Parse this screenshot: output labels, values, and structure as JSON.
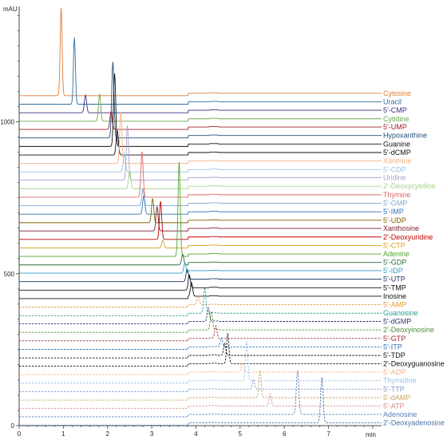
{
  "chart_data": {
    "type": "line",
    "title": "",
    "xlabel": "min",
    "ylabel": "mAU",
    "xlim": [
      0,
      8.2
    ],
    "ylim": [
      0,
      1380
    ],
    "x_ticks": [
      0,
      1,
      2,
      3,
      4,
      5,
      6,
      7
    ],
    "y_ticks": [
      0,
      500,
      1000
    ],
    "x_tick_labels": [
      "0",
      "1",
      "2",
      "3",
      "4",
      "5",
      "6",
      "7"
    ],
    "y_tick_labels": [
      "0",
      "500",
      "1000"
    ],
    "series": [
      {
        "name": "Cytosine",
        "color": "#e07b39",
        "dashed": false,
        "baseline": 1086,
        "peaks": [
          {
            "x": 0.95,
            "h": 290,
            "w": 0.022
          }
        ]
      },
      {
        "name": "Uracil",
        "color": "#2f6f9f",
        "dashed": false,
        "baseline": 1058,
        "peaks": [
          {
            "x": 1.25,
            "h": 220,
            "w": 0.022
          }
        ]
      },
      {
        "name": "5'-CMP",
        "color": "#3b2f7f",
        "dashed": false,
        "baseline": 1030,
        "peaks": [
          {
            "x": 1.5,
            "h": 58,
            "w": 0.025
          }
        ]
      },
      {
        "name": "Cytidine",
        "color": "#6aa84f",
        "dashed": false,
        "baseline": 1002,
        "peaks": [
          {
            "x": 1.82,
            "h": 90,
            "w": 0.025
          }
        ]
      },
      {
        "name": "5'-UMP",
        "color": "#a61c2a",
        "dashed": false,
        "baseline": 975,
        "peaks": [
          {
            "x": 2.08,
            "h": 60,
            "w": 0.025
          }
        ]
      },
      {
        "name": "Hypoxanthine",
        "color": "#1f4e79",
        "dashed": false,
        "baseline": 947,
        "peaks": [
          {
            "x": 2.12,
            "h": 250,
            "w": 0.025
          }
        ]
      },
      {
        "name": "Guanine",
        "color": "#111111",
        "dashed": false,
        "baseline": 919,
        "peaks": [
          {
            "x": 2.16,
            "h": 240,
            "w": 0.025
          }
        ]
      },
      {
        "name": "5'-dCMP",
        "color": "#111111",
        "dashed": false,
        "baseline": 891,
        "peaks": [
          {
            "x": 2.22,
            "h": 80,
            "w": 0.025
          }
        ]
      },
      {
        "name": "Xanthine",
        "color": "#f4b183",
        "dashed": false,
        "baseline": 863,
        "peaks": [
          {
            "x": 2.3,
            "h": 170,
            "w": 0.025
          }
        ]
      },
      {
        "name": "5'-CDP",
        "color": "#9dc3e6",
        "dashed": false,
        "baseline": 835,
        "peaks": [
          {
            "x": 2.38,
            "h": 60,
            "w": 0.025
          }
        ]
      },
      {
        "name": "Uridine",
        "color": "#a9a3c9",
        "dashed": false,
        "baseline": 808,
        "peaks": [
          {
            "x": 2.45,
            "h": 180,
            "w": 0.025
          }
        ]
      },
      {
        "name": "2'-Deoxycytidine",
        "color": "#a9d18e",
        "dashed": false,
        "baseline": 780,
        "peaks": [
          {
            "x": 2.5,
            "h": 60,
            "w": 0.025
          }
        ]
      },
      {
        "name": "Thymine",
        "color": "#e06666",
        "dashed": false,
        "baseline": 752,
        "peaks": [
          {
            "x": 2.78,
            "h": 150,
            "w": 0.025
          }
        ]
      },
      {
        "name": "5'-GMP",
        "color": "#7ea6d0",
        "dashed": false,
        "baseline": 724,
        "peaks": [
          {
            "x": 2.8,
            "h": 55,
            "w": 0.025
          }
        ]
      },
      {
        "name": "5'-IMP",
        "color": "#2e75b6",
        "dashed": false,
        "baseline": 696,
        "peaks": [
          {
            "x": 2.82,
            "h": 60,
            "w": 0.025
          }
        ]
      },
      {
        "name": "5'-UDP",
        "color": "#7f6000",
        "dashed": false,
        "baseline": 668,
        "peaks": [
          {
            "x": 3.02,
            "h": 80,
            "w": 0.025
          }
        ]
      },
      {
        "name": "Xanthosine",
        "color": "#7b1f2f",
        "dashed": false,
        "baseline": 641,
        "peaks": [
          {
            "x": 3.12,
            "h": 80,
            "w": 0.025
          }
        ]
      },
      {
        "name": "2'-Deoxyuridine",
        "color": "#c00000",
        "dashed": false,
        "baseline": 613,
        "peaks": [
          {
            "x": 3.2,
            "h": 125,
            "w": 0.025
          }
        ]
      },
      {
        "name": "5'-CTP",
        "color": "#d4a017",
        "dashed": false,
        "baseline": 585,
        "peaks": [
          {
            "x": 3.25,
            "h": 25,
            "w": 0.025
          }
        ]
      },
      {
        "name": "Adenine",
        "color": "#4ea72e",
        "dashed": false,
        "baseline": 557,
        "peaks": [
          {
            "x": 3.62,
            "h": 310,
            "w": 0.025
          }
        ]
      },
      {
        "name": "5'-GDP",
        "color": "#2f6b3a",
        "dashed": false,
        "baseline": 529,
        "peaks": [
          {
            "x": 3.7,
            "h": 35,
            "w": 0.025
          }
        ]
      },
      {
        "name": "5'-IDP",
        "color": "#2e9bc7",
        "dashed": false,
        "baseline": 502,
        "peaks": [
          {
            "x": 3.75,
            "h": 35,
            "w": 0.025
          }
        ]
      },
      {
        "name": "5'-UTP",
        "color": "#1f3864",
        "dashed": false,
        "baseline": 474,
        "peaks": [
          {
            "x": 3.8,
            "h": 40,
            "w": 0.025
          }
        ]
      },
      {
        "name": "5'-TMP",
        "color": "#111111",
        "dashed": false,
        "baseline": 446,
        "peaks": [
          {
            "x": 3.85,
            "h": 42,
            "w": 0.025
          }
        ]
      },
      {
        "name": "Inosine",
        "color": "#111111",
        "dashed": false,
        "baseline": 418,
        "peaks": [
          {
            "x": 3.9,
            "h": 45,
            "w": 0.025
          }
        ]
      },
      {
        "name": "5'-AMP",
        "color": "#e59a3b",
        "dashed": true,
        "baseline": 390,
        "peaks": [
          {
            "x": 4.05,
            "h": 30,
            "w": 0.025
          }
        ]
      },
      {
        "name": "Guanosine",
        "color": "#2a9d8f",
        "dashed": true,
        "baseline": 362,
        "peaks": [
          {
            "x": 4.2,
            "h": 85,
            "w": 0.025
          }
        ]
      },
      {
        "name": "5'-dGMP",
        "color": "#2f2f6f",
        "dashed": true,
        "baseline": 335,
        "peaks": [
          {
            "x": 4.28,
            "h": 45,
            "w": 0.025
          }
        ]
      },
      {
        "name": "2'-Deoxyinosine",
        "color": "#4e8f3a",
        "dashed": true,
        "baseline": 307,
        "peaks": [
          {
            "x": 4.35,
            "h": 60,
            "w": 0.025
          }
        ]
      },
      {
        "name": "5'-GTP",
        "color": "#9e2a2b",
        "dashed": true,
        "baseline": 279,
        "peaks": [
          {
            "x": 4.45,
            "h": 40,
            "w": 0.025
          }
        ]
      },
      {
        "name": "5'-ITP",
        "color": "#2e75b6",
        "dashed": true,
        "baseline": 251,
        "peaks": [
          {
            "x": 4.58,
            "h": 30,
            "w": 0.025
          }
        ]
      },
      {
        "name": "5'-TDP",
        "color": "#111111",
        "dashed": true,
        "baseline": 223,
        "peaks": [
          {
            "x": 4.65,
            "h": 40,
            "w": 0.025
          }
        ]
      },
      {
        "name": "2'-Deoxyguanosine",
        "color": "#111111",
        "dashed": true,
        "baseline": 196,
        "peaks": [
          {
            "x": 4.72,
            "h": 100,
            "w": 0.025
          }
        ]
      },
      {
        "name": "5'-ADP",
        "color": "#f4b183",
        "dashed": true,
        "baseline": 168,
        "peaks": [
          {
            "x": 5.05,
            "h": 30,
            "w": 0.025
          }
        ]
      },
      {
        "name": "Thymidine",
        "color": "#9dc3e6",
        "dashed": true,
        "baseline": 140,
        "peaks": [
          {
            "x": 5.15,
            "h": 130,
            "w": 0.025
          }
        ]
      },
      {
        "name": "5'-TTP",
        "color": "#7e9ec9",
        "dashed": true,
        "baseline": 112,
        "peaks": [
          {
            "x": 5.3,
            "h": 30,
            "w": 0.025
          }
        ]
      },
      {
        "name": "5'-dAMP",
        "color": "#c9a66b",
        "dashed": true,
        "baseline": 84,
        "peaks": [
          {
            "x": 5.45,
            "h": 90,
            "w": 0.025
          }
        ]
      },
      {
        "name": "5'-ATP",
        "color": "#d98c8c",
        "dashed": true,
        "baseline": 57,
        "peaks": [
          {
            "x": 5.68,
            "h": 40,
            "w": 0.025
          }
        ]
      },
      {
        "name": "Adenosine",
        "color": "#5b7fb5",
        "dashed": true,
        "baseline": 29,
        "peaks": [
          {
            "x": 6.3,
            "h": 145,
            "w": 0.028
          }
        ]
      },
      {
        "name": "2'-Deoxyadenosine",
        "color": "#4a6fa5",
        "dashed": true,
        "baseline": 1,
        "peaks": [
          {
            "x": 6.85,
            "h": 150,
            "w": 0.028
          }
        ]
      }
    ]
  }
}
